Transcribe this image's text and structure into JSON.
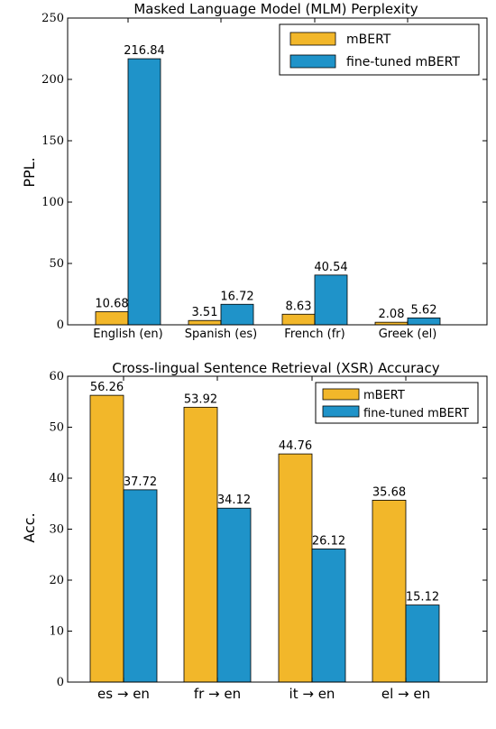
{
  "colors": {
    "mbert": "#f2b72a",
    "finetuned": "#1f93c9"
  },
  "chart_data": [
    {
      "type": "bar",
      "title": "Masked Language Model (MLM) Perplexity",
      "ylabel": "PPL.",
      "xlabel": "",
      "ylim": [
        0,
        250
      ],
      "yticks": [
        0,
        50,
        100,
        150,
        200,
        250
      ],
      "categories": [
        "English (en)",
        "Spanish (es)",
        "French (fr)",
        "Greek (el)"
      ],
      "series": [
        {
          "name": "mBERT",
          "values": [
            10.68,
            3.51,
            8.63,
            2.08
          ],
          "labels": [
            "10.68",
            "3.51",
            "8.63",
            "2.08"
          ]
        },
        {
          "name": "fine-tuned mBERT",
          "values": [
            216.84,
            16.72,
            40.54,
            5.62
          ],
          "labels": [
            "216.84",
            "16.72",
            "40.54",
            "5.62"
          ]
        }
      ],
      "legend": "top-right",
      "grid": false
    },
    {
      "type": "bar",
      "title": "Cross-lingual Sentence Retrieval (XSR) Accuracy",
      "ylabel": "Acc.",
      "xlabel": "",
      "ylim": [
        0,
        60
      ],
      "yticks": [
        0,
        10,
        20,
        30,
        40,
        50,
        60
      ],
      "categories": [
        "es → en",
        "fr → en",
        "it → en",
        "el → en"
      ],
      "series": [
        {
          "name": "mBERT",
          "values": [
            56.26,
            53.92,
            44.76,
            35.68
          ],
          "labels": [
            "56.26",
            "53.92",
            "44.76",
            "35.68"
          ]
        },
        {
          "name": "fine-tuned mBERT",
          "values": [
            37.72,
            34.12,
            26.12,
            15.12
          ],
          "labels": [
            "37.72",
            "34.12",
            "26.12",
            "15.12"
          ]
        }
      ],
      "legend": "top-right",
      "grid": false
    }
  ]
}
